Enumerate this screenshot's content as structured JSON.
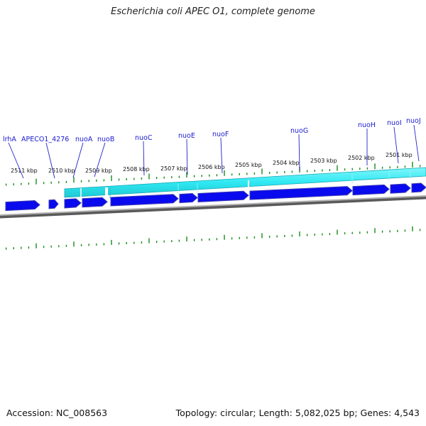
{
  "title": "Escherichia coli APEC O1, complete genome",
  "footer": {
    "accession": "Accession: NC_008563",
    "summary": "Topology: circular; Length: 5,082,025 bp; Genes: 4,543"
  },
  "colors": {
    "gene_fill": "#0a0aee",
    "gene_shadow": "#3a3ab4",
    "cds_band": "#2fe8f2",
    "cds_band_edge": "#17a9b4",
    "backbone": "#8a8a8a",
    "tick": "#168c16",
    "gene_label": "#1a1ad0",
    "leader_line": "#2222cc"
  },
  "ruler_labels": [
    "2511 kbp",
    "2510 kbp",
    "2509 kbp",
    "2508 kbp",
    "2507 kbp",
    "2506 kbp",
    "2505 kbp",
    "2504 kbp",
    "2503 kbp",
    "2502 kbp",
    "2501 kbp"
  ],
  "gene_labels": [
    "lrhA",
    "APECO1_4276",
    "nuoA",
    "nuoB",
    "nuoC",
    "nuoE",
    "nuoF",
    "nuoG",
    "nuoH",
    "nuoI",
    "nuoJ"
  ]
}
